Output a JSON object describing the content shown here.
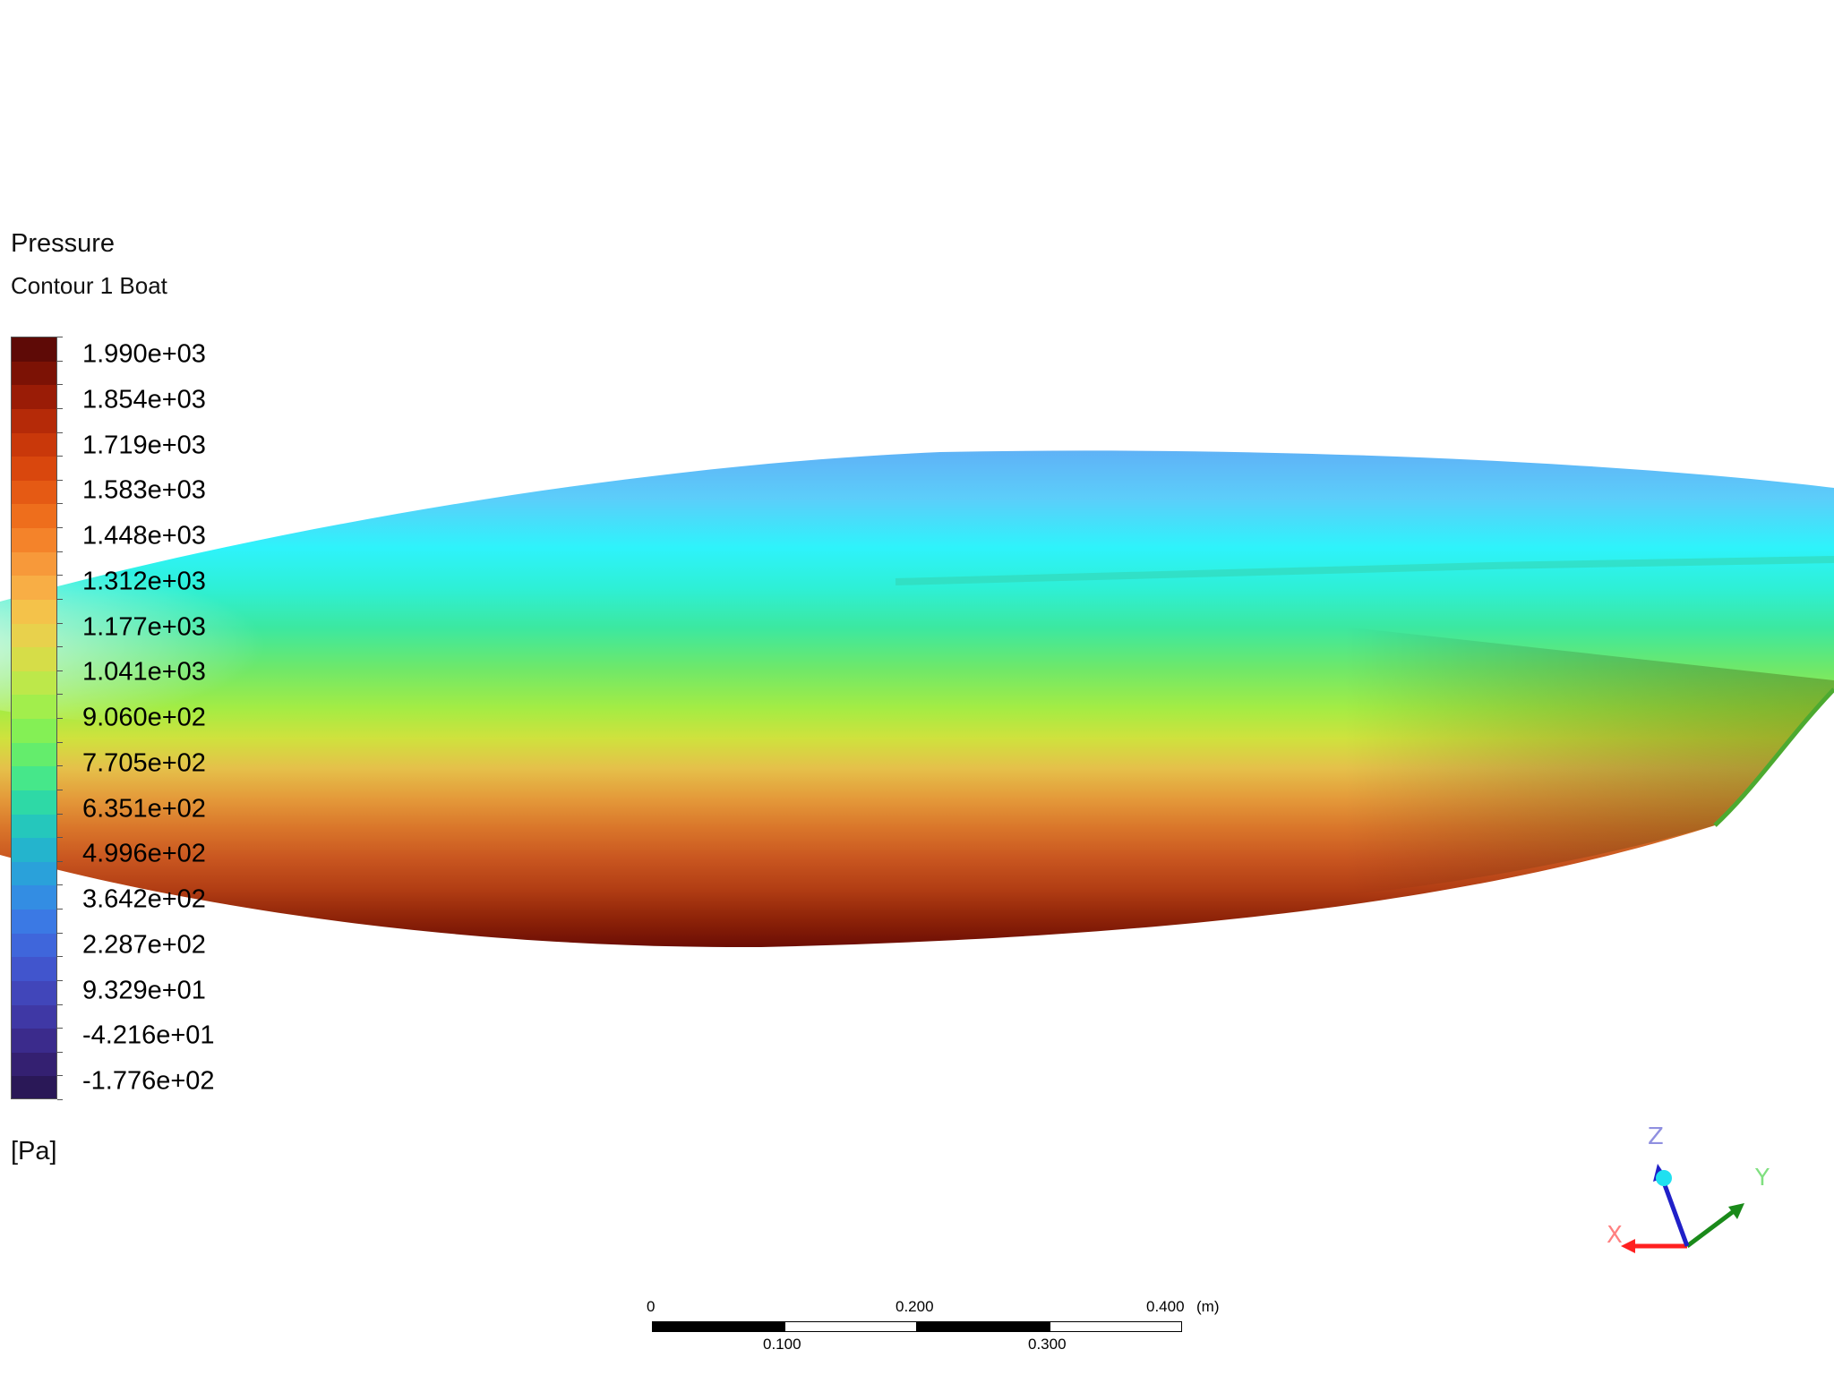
{
  "legend": {
    "title": "Pressure",
    "subtitle": "Contour 1 Boat",
    "unit": "[Pa]",
    "labels": [
      "1.990e+03",
      "1.854e+03",
      "1.719e+03",
      "1.583e+03",
      "1.448e+03",
      "1.312e+03",
      "1.177e+03",
      "1.041e+03",
      "9.060e+02",
      "7.705e+02",
      "6.351e+02",
      "4.996e+02",
      "3.642e+02",
      "2.287e+02",
      "9.329e+01",
      "-4.216e+01",
      "-1.776e+02"
    ],
    "colors": [
      "#5e0a06",
      "#7c1205",
      "#9a1c06",
      "#b52a08",
      "#c9380a",
      "#d9470d",
      "#e55a14",
      "#ee6e1c",
      "#f4832a",
      "#f7993a",
      "#f8ae45",
      "#f4c24a",
      "#e8d14c",
      "#d6dd48",
      "#bde84a",
      "#a2ee4c",
      "#84f055",
      "#64ed6c",
      "#46e78a",
      "#2ed9a6",
      "#25c7bc",
      "#24b4cd",
      "#2aa1da",
      "#338de3",
      "#3b79e4",
      "#3f66db",
      "#4155cd",
      "#4146ba",
      "#3f38a5",
      "#3b2b8c",
      "#342071",
      "#2a1857"
    ]
  },
  "scalebar": {
    "top_labels": [
      "0",
      "0.200",
      "0.400"
    ],
    "bottom_labels": [
      "0.100",
      "0.300"
    ],
    "unit": "(m)"
  },
  "triad": {
    "x_label": "X",
    "y_label": "Y",
    "z_label": "Z",
    "x_color": "#ff2020",
    "y_color": "#1a8a1a",
    "z_color": "#2020c8"
  }
}
